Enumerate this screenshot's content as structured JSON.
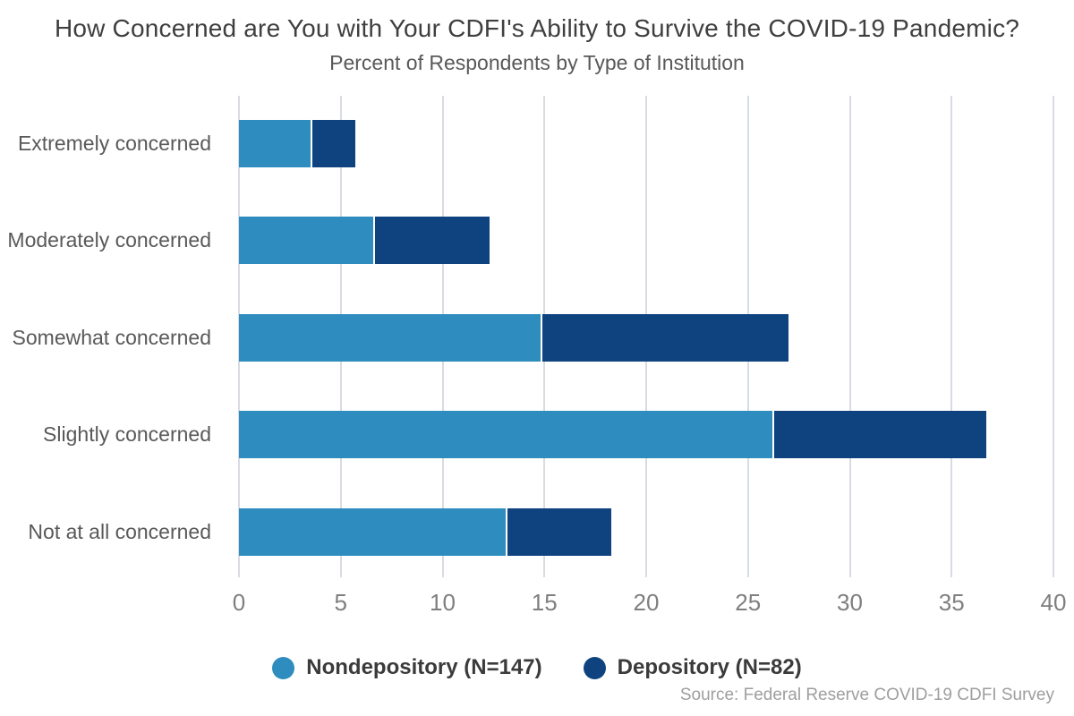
{
  "title": "How Concerned are You with Your CDFI's Ability to Survive the COVID-19 Pandemic?",
  "subtitle": "Percent of Respondents by Type of Institution",
  "source": "Source: Federal Reserve COVID-19 CDFI Survey",
  "colors": {
    "nondepository": "#2E8CBE",
    "depository": "#0E4380",
    "gridline": "#D8DCE2",
    "title_text": "#3F3F3F",
    "subtitle_text": "#595959",
    "axis_text": "#7F7F7F",
    "category_text": "#595959",
    "legend_text": "#3B3B3B",
    "source_text": "#9E9E9E"
  },
  "chart_data": {
    "type": "bar",
    "orientation": "horizontal",
    "stacked": true,
    "title": "How Concerned are You with Your CDFI's Ability to Survive the COVID-19 Pandemic?",
    "subtitle": "Percent of Respondents by Type of Institution",
    "categories": [
      "Extremely concerned",
      "Moderately concerned",
      "Somewhat concerned",
      "Slightly concerned",
      "Not at all concerned"
    ],
    "series": [
      {
        "name": "Nondepository (N=147)",
        "color": "#2E8CBE",
        "values": [
          3.5,
          6.6,
          14.8,
          26.2,
          13.1
        ]
      },
      {
        "name": "Depository (N=82)",
        "color": "#0E4380",
        "values": [
          2.2,
          5.7,
          12.2,
          10.5,
          5.2
        ]
      }
    ],
    "stack_totals": [
      5.7,
      12.3,
      27.0,
      36.7,
      18.3
    ],
    "xlabel": "",
    "ylabel": "",
    "xlim": [
      0,
      40
    ],
    "xticks": [
      0,
      5,
      10,
      15,
      20,
      25,
      30,
      35,
      40
    ],
    "grid": "vertical",
    "legend_position": "bottom",
    "units": "percent"
  },
  "legend": {
    "items": [
      {
        "label": "Nondepository (N=147)",
        "color": "#2E8CBE"
      },
      {
        "label": "Depository (N=82)",
        "color": "#0E4380"
      }
    ]
  }
}
